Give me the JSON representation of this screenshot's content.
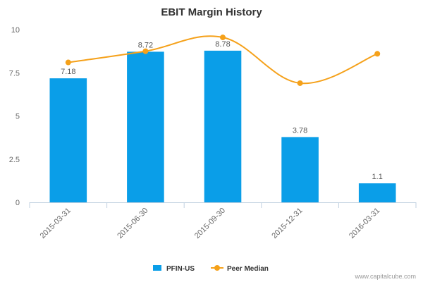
{
  "chart_data": {
    "type": "bar",
    "title": "EBIT Margin History",
    "categories": [
      "2015-03-31",
      "2015-06-30",
      "2015-09-30",
      "2015-12-31",
      "2016-03-31"
    ],
    "ylim": [
      0,
      10
    ],
    "yticks": [
      {
        "value": 0,
        "label": "0"
      },
      {
        "value": 2.5,
        "label": "2.5"
      },
      {
        "value": 5,
        "label": "5"
      },
      {
        "value": 7.5,
        "label": "7.5"
      },
      {
        "value": 10,
        "label": "10"
      }
    ],
    "grid": false,
    "legend_position": "bottom-center",
    "series": [
      {
        "name": "PFIN-US",
        "kind": "bar",
        "color": "#0a9ee8",
        "values": [
          7.18,
          8.72,
          8.78,
          3.78,
          1.1
        ],
        "labels": [
          "7.18",
          "8.72",
          "8.78",
          "3.78",
          "1.1"
        ]
      },
      {
        "name": "Peer Median",
        "kind": "line",
        "color": "#f5a11a",
        "values": [
          8.1,
          8.75,
          9.55,
          6.9,
          8.6
        ]
      }
    ]
  },
  "credit": "www.capitalcube.com"
}
